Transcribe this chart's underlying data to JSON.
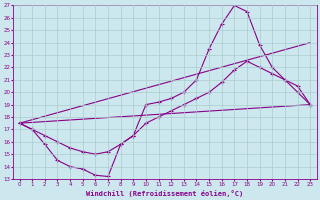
{
  "xlabel": "Windchill (Refroidissement éolien,°C)",
  "bg_color": "#cce8ee",
  "line_color": "#880088",
  "grid_color": "#aacccc",
  "xlim": [
    -0.5,
    23.5
  ],
  "ylim": [
    13,
    27
  ],
  "yticks": [
    13,
    14,
    15,
    16,
    17,
    18,
    19,
    20,
    21,
    22,
    23,
    24,
    25,
    26,
    27
  ],
  "xticks": [
    0,
    1,
    2,
    3,
    4,
    5,
    6,
    7,
    8,
    9,
    10,
    11,
    12,
    13,
    14,
    15,
    16,
    17,
    18,
    19,
    20,
    21,
    22,
    23
  ],
  "line1_x": [
    0,
    1,
    2,
    3,
    4,
    5,
    6,
    7,
    8,
    9,
    10,
    11,
    12,
    13,
    14,
    15,
    16,
    17,
    18,
    19,
    20,
    21,
    22,
    23
  ],
  "line1_y": [
    17.5,
    17.0,
    15.8,
    14.5,
    14.0,
    13.8,
    13.3,
    13.2,
    15.8,
    16.5,
    19.0,
    19.2,
    19.5,
    20.0,
    21.0,
    23.5,
    25.5,
    27.0,
    26.5,
    23.8,
    22.0,
    21.0,
    20.5,
    19.0
  ],
  "line2_x": [
    0,
    1,
    2,
    3,
    4,
    5,
    6,
    7,
    8,
    9,
    10,
    11,
    12,
    13,
    14,
    15,
    16,
    17,
    18,
    19,
    20,
    21,
    22,
    23
  ],
  "line2_y": [
    17.5,
    17.0,
    16.5,
    16.0,
    15.5,
    15.2,
    15.0,
    15.2,
    15.8,
    16.5,
    17.5,
    18.0,
    18.5,
    19.0,
    19.5,
    20.0,
    20.8,
    21.8,
    22.5,
    22.0,
    21.5,
    21.0,
    20.0,
    19.0
  ],
  "line3_x": [
    0,
    23
  ],
  "line3_y": [
    17.5,
    19.0
  ],
  "line4_x": [
    0,
    23
  ],
  "line4_y": [
    17.5,
    24.0
  ]
}
